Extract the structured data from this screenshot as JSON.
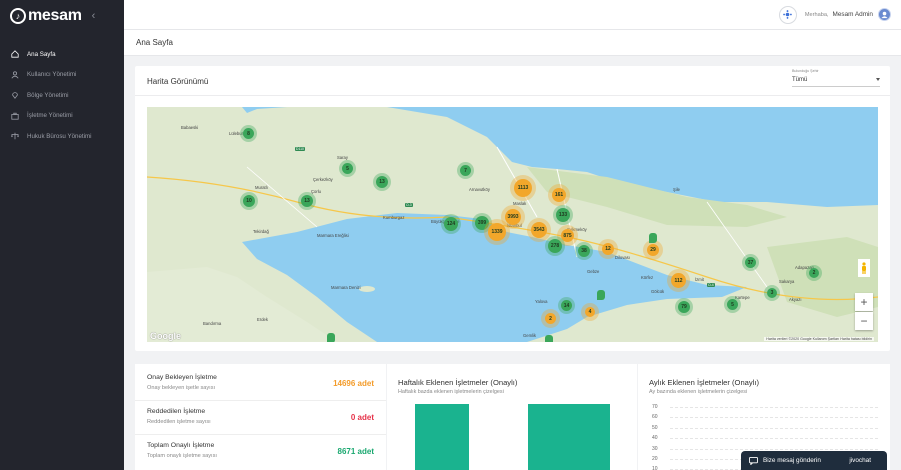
{
  "app": {
    "logo_text": "mesam",
    "logo_glyph": "♪"
  },
  "sidebar": {
    "items": [
      {
        "label": "Ana Sayfa",
        "icon": "home-icon",
        "active": true
      },
      {
        "label": "Kullanıcı Yönetimi",
        "icon": "user-icon",
        "active": false
      },
      {
        "label": "Bölge Yönetimi",
        "icon": "location-icon",
        "active": false
      },
      {
        "label": "İşletme Yönetimi",
        "icon": "briefcase-icon",
        "active": false
      },
      {
        "label": "Hukuk Bürosu Yönetimi",
        "icon": "scale-icon",
        "active": false
      }
    ]
  },
  "header": {
    "greeting": "Merhaba,",
    "user": "Mesam Admin"
  },
  "page": {
    "title": "Ana Sayfa"
  },
  "map_card": {
    "title": "Harita Görünümü",
    "filter_label": "Bulunduğu Şehir",
    "filter_value": "Tümü",
    "attribution": "Harita verileri ©2020 Google   Kullanım Şartları   Harita hatası bildirin",
    "google": "Google",
    "clusters": [
      {
        "value": "8",
        "kind": "g"
      },
      {
        "value": "5",
        "kind": "g"
      },
      {
        "value": "13",
        "kind": "g"
      },
      {
        "value": "7",
        "kind": "g"
      },
      {
        "value": "1113",
        "kind": "y"
      },
      {
        "value": "161",
        "kind": "y"
      },
      {
        "value": "10",
        "kind": "g"
      },
      {
        "value": "13",
        "kind": "g"
      },
      {
        "value": "3993",
        "kind": "y"
      },
      {
        "value": "133",
        "kind": "g"
      },
      {
        "value": "124",
        "kind": "g"
      },
      {
        "value": "399",
        "kind": "g"
      },
      {
        "value": "1339",
        "kind": "y"
      },
      {
        "value": "3543",
        "kind": "y"
      },
      {
        "value": "875",
        "kind": "y"
      },
      {
        "value": "278",
        "kind": "g"
      },
      {
        "value": "38",
        "kind": "g"
      },
      {
        "value": "12",
        "kind": "y"
      },
      {
        "value": "29",
        "kind": "y"
      },
      {
        "value": "37",
        "kind": "g"
      },
      {
        "value": "2",
        "kind": "g"
      },
      {
        "value": "112",
        "kind": "y"
      },
      {
        "value": "3",
        "kind": "g"
      },
      {
        "value": "14",
        "kind": "g"
      },
      {
        "value": "79",
        "kind": "g"
      },
      {
        "value": "5",
        "kind": "g"
      },
      {
        "value": "2",
        "kind": "y"
      },
      {
        "value": "4",
        "kind": "y"
      }
    ],
    "cities": [
      "Lüleburgaz",
      "Babaeski",
      "Saray",
      "Çerkezköy",
      "Muratlı",
      "Çorlu",
      "Marmara Ereğlisi",
      "Tekirdağ",
      "Kumburgaz",
      "Büyükçekmece",
      "İstanbul",
      "Arnavutköy",
      "Maslak",
      "Çekmeköy",
      "Şile",
      "Gebze",
      "Dilovası",
      "Körfez",
      "Gölcük",
      "Kartepe",
      "İzmit",
      "Sakarya",
      "Adapazarı",
      "Akyazı",
      "Yalova",
      "Marmara Denizi",
      "Gemlik",
      "Bandırma",
      "Erdek"
    ]
  },
  "stats": [
    {
      "title": "Onay Bekleyen İşletme",
      "sub": "Onay bekleyen işetle sayısı",
      "value": "14696 adet",
      "color": "#f39c2b"
    },
    {
      "title": "Reddedilen İşletme",
      "sub": "Reddedilen işletme sayısı",
      "value": "0 adet",
      "color": "#e6334a"
    },
    {
      "title": "Toplam Onaylı İşletme",
      "sub": "Toplam onaylı işletme sayısı",
      "value": "8671 adet",
      "color": "#1aa870"
    }
  ],
  "weekly": {
    "title": "Haftalık Eklenen İşletmeler (Onaylı)",
    "sub": "Haftalık bazda eklenen işletmelerin çizelgesi"
  },
  "monthly": {
    "title": "Aylık Eklenen İşletmeler (Onaylı)",
    "sub": "Ay bazında eklenen işletmelerin çizelgesi"
  },
  "chart_data": [
    {
      "type": "bar",
      "title": "Haftalık Eklenen İşletmeler (Onaylı)",
      "categories": [
        "",
        ""
      ],
      "values": [
        null,
        null
      ],
      "color": "#1ab38f"
    },
    {
      "type": "bar",
      "title": "Aylık Eklenen İşletmeler (Onaylı)",
      "yticks": [
        70,
        60,
        50,
        40,
        30,
        20,
        10
      ],
      "ylim": [
        0,
        70
      ],
      "grid": true
    }
  ],
  "chat": {
    "label": "Bize mesaj gönderin",
    "brand": "jivochat"
  }
}
